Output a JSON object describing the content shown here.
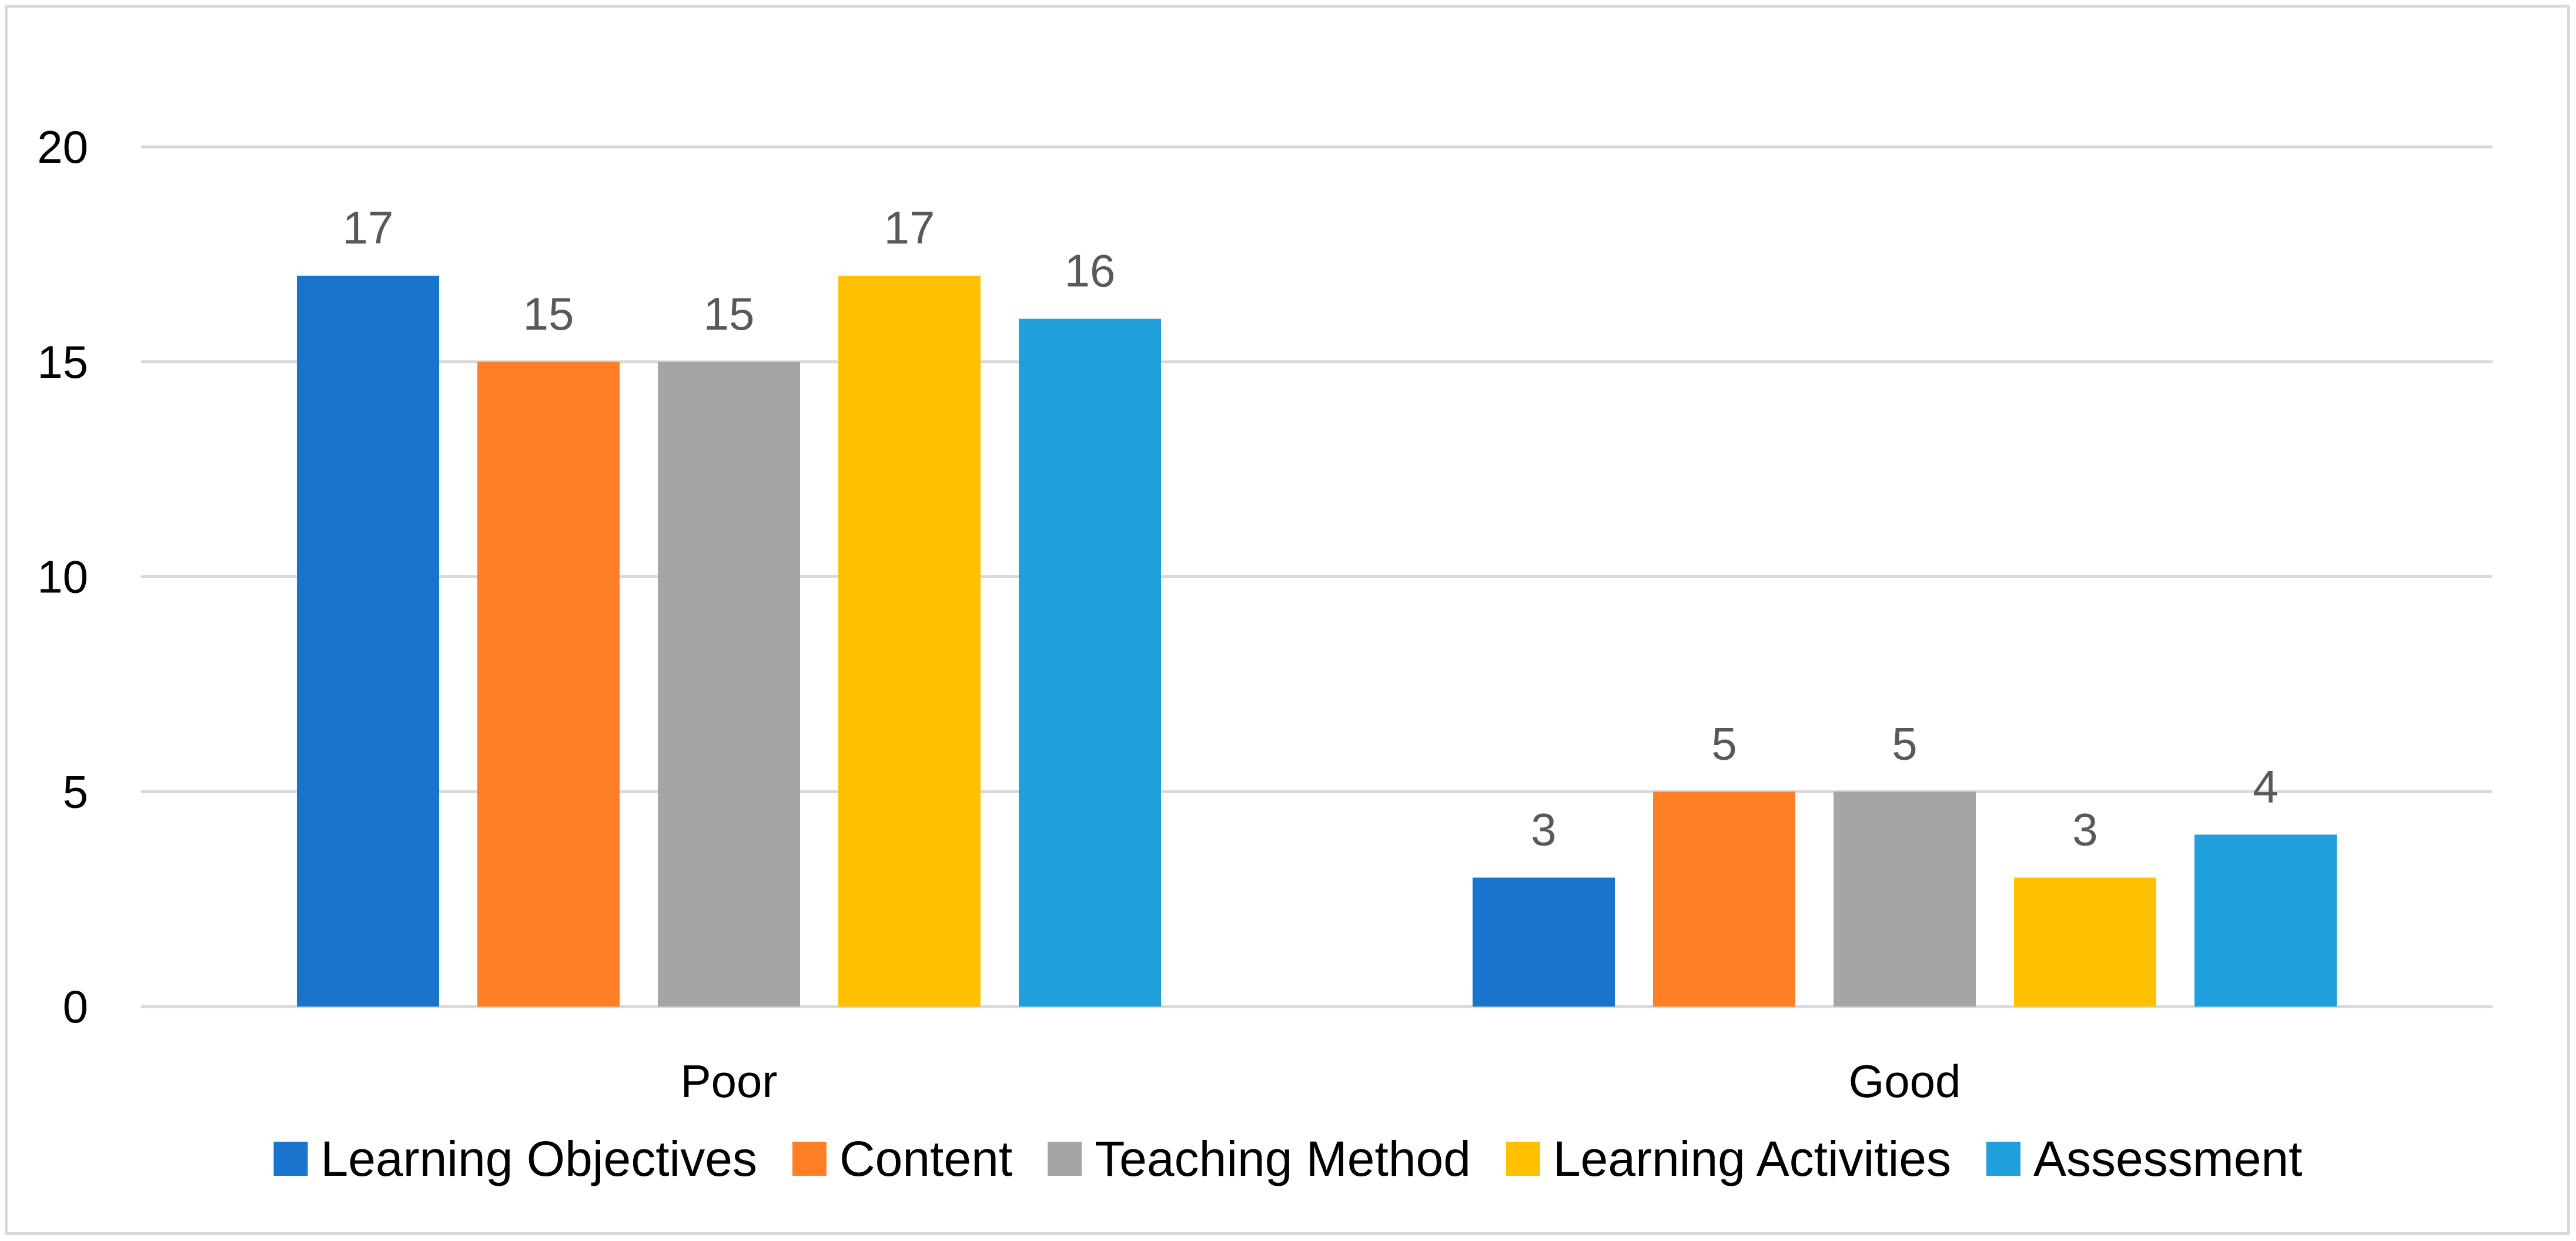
{
  "chart_data": {
    "type": "bar",
    "title": "",
    "xlabel": "",
    "ylabel": "",
    "categories": [
      "Poor",
      "Good"
    ],
    "series": [
      {
        "name": "Learning Objectives",
        "values": [
          17,
          3
        ],
        "color": "#1874CD"
      },
      {
        "name": "Content",
        "values": [
          15,
          5
        ],
        "color": "#FF7F27"
      },
      {
        "name": "Teaching Method",
        "values": [
          15,
          5
        ],
        "color": "#A5A5A5"
      },
      {
        "name": "Learning Activities",
        "values": [
          17,
          3
        ],
        "color": "#FFC000"
      },
      {
        "name": "Assessment",
        "values": [
          16,
          4
        ],
        "color": "#1F9FDB"
      }
    ],
    "ylim": [
      0,
      20
    ],
    "yticks": [
      0,
      5,
      10,
      15,
      20
    ],
    "grid": true,
    "legend": "bottom",
    "data_labels": true
  }
}
